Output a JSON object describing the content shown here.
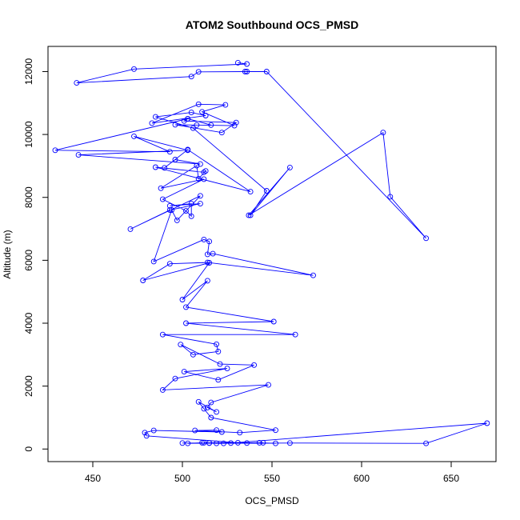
{
  "chart_data": {
    "type": "line",
    "title": "ATOM2 Southbound OCS_PMSD",
    "xlabel": "OCS_PMSD",
    "ylabel": "Altitude (m)",
    "xlim": [
      425,
      675
    ],
    "ylim": [
      -400,
      12800
    ],
    "x_ticks": [
      450,
      500,
      550,
      600,
      650
    ],
    "y_ticks": [
      0,
      2000,
      4000,
      6000,
      8000,
      10000,
      12000
    ],
    "grid": false,
    "legend": "none",
    "line_color": "#0000ff",
    "marker": "open-circle",
    "series": [
      {
        "points": [
          [
            531,
            12280
          ],
          [
            536,
            12240
          ],
          [
            473,
            12080
          ],
          [
            441,
            11640
          ],
          [
            505,
            11840
          ],
          [
            509,
            11990
          ],
          [
            535,
            12000
          ],
          [
            536,
            12000
          ],
          [
            547,
            12000
          ],
          [
            636,
            6700
          ],
          [
            616,
            8020
          ],
          [
            612,
            10060
          ],
          [
            537,
            7430
          ],
          [
            560,
            8950
          ],
          [
            538,
            7430
          ],
          [
            547,
            8210
          ],
          [
            506,
            10200
          ],
          [
            485,
            10560
          ],
          [
            505,
            10700
          ],
          [
            513,
            10600
          ],
          [
            483,
            10360
          ],
          [
            509,
            10960
          ],
          [
            524,
            10940
          ],
          [
            511,
            10720
          ],
          [
            529,
            10280
          ],
          [
            508,
            10300
          ],
          [
            496,
            10310
          ],
          [
            522,
            10060
          ],
          [
            530,
            10380
          ],
          [
            501,
            10430
          ],
          [
            503,
            10500
          ],
          [
            516,
            10300
          ],
          [
            503,
            10500
          ],
          [
            429,
            9500
          ],
          [
            493,
            9450
          ],
          [
            473,
            9940
          ],
          [
            503,
            9500
          ],
          [
            442,
            9350
          ],
          [
            510,
            9060
          ],
          [
            496,
            9200
          ],
          [
            490,
            8940
          ],
          [
            503,
            9520
          ],
          [
            538,
            8180
          ],
          [
            485,
            8960
          ],
          [
            512,
            8800
          ],
          [
            513,
            8840
          ],
          [
            509,
            8590
          ],
          [
            508,
            9010
          ],
          [
            488,
            8290
          ],
          [
            512,
            8580
          ],
          [
            489,
            7940
          ],
          [
            502,
            7570
          ],
          [
            505,
            7400
          ],
          [
            505,
            7800
          ],
          [
            493,
            7730
          ],
          [
            510,
            7800
          ],
          [
            493,
            7600
          ],
          [
            471,
            6990
          ],
          [
            510,
            8050
          ],
          [
            497,
            7270
          ],
          [
            494,
            7600
          ],
          [
            484,
            5960
          ],
          [
            512,
            6660
          ],
          [
            515,
            6600
          ],
          [
            514,
            6190
          ],
          [
            517,
            6210
          ],
          [
            573,
            5520
          ],
          [
            514,
            5930
          ],
          [
            493,
            5890
          ],
          [
            478,
            5360
          ],
          [
            515,
            5920
          ],
          [
            500,
            4750
          ],
          [
            514,
            5350
          ],
          [
            502,
            4510
          ],
          [
            551,
            4050
          ],
          [
            502,
            4000
          ],
          [
            563,
            3640
          ],
          [
            489,
            3640
          ],
          [
            519,
            3330
          ],
          [
            520,
            3100
          ],
          [
            506,
            3000
          ],
          [
            499,
            3320
          ],
          [
            521,
            2700
          ],
          [
            540,
            2670
          ],
          [
            520,
            2200
          ],
          [
            501,
            2460
          ],
          [
            525,
            2560
          ],
          [
            496,
            2240
          ],
          [
            489,
            1880
          ],
          [
            548,
            2040
          ],
          [
            516,
            1480
          ],
          [
            514,
            1320
          ],
          [
            519,
            1180
          ],
          [
            509,
            1500
          ],
          [
            512,
            1280
          ],
          [
            516,
            1000
          ],
          [
            552,
            600
          ],
          [
            532,
            520
          ],
          [
            507,
            590
          ],
          [
            519,
            600
          ],
          [
            522,
            540
          ],
          [
            484,
            590
          ],
          [
            479,
            520
          ],
          [
            480,
            420
          ],
          [
            531,
            200
          ],
          [
            552,
            180
          ],
          [
            543,
            200
          ],
          [
            512,
            200
          ],
          [
            545,
            200
          ],
          [
            500,
            190
          ],
          [
            515,
            190
          ],
          [
            519,
            180
          ],
          [
            560,
            190
          ],
          [
            636,
            180
          ],
          [
            670,
            820
          ],
          [
            527,
            190
          ],
          [
            515,
            190
          ],
          [
            523,
            180
          ],
          [
            536,
            190
          ],
          [
            503,
            180
          ],
          [
            511,
            200
          ]
        ]
      }
    ]
  }
}
